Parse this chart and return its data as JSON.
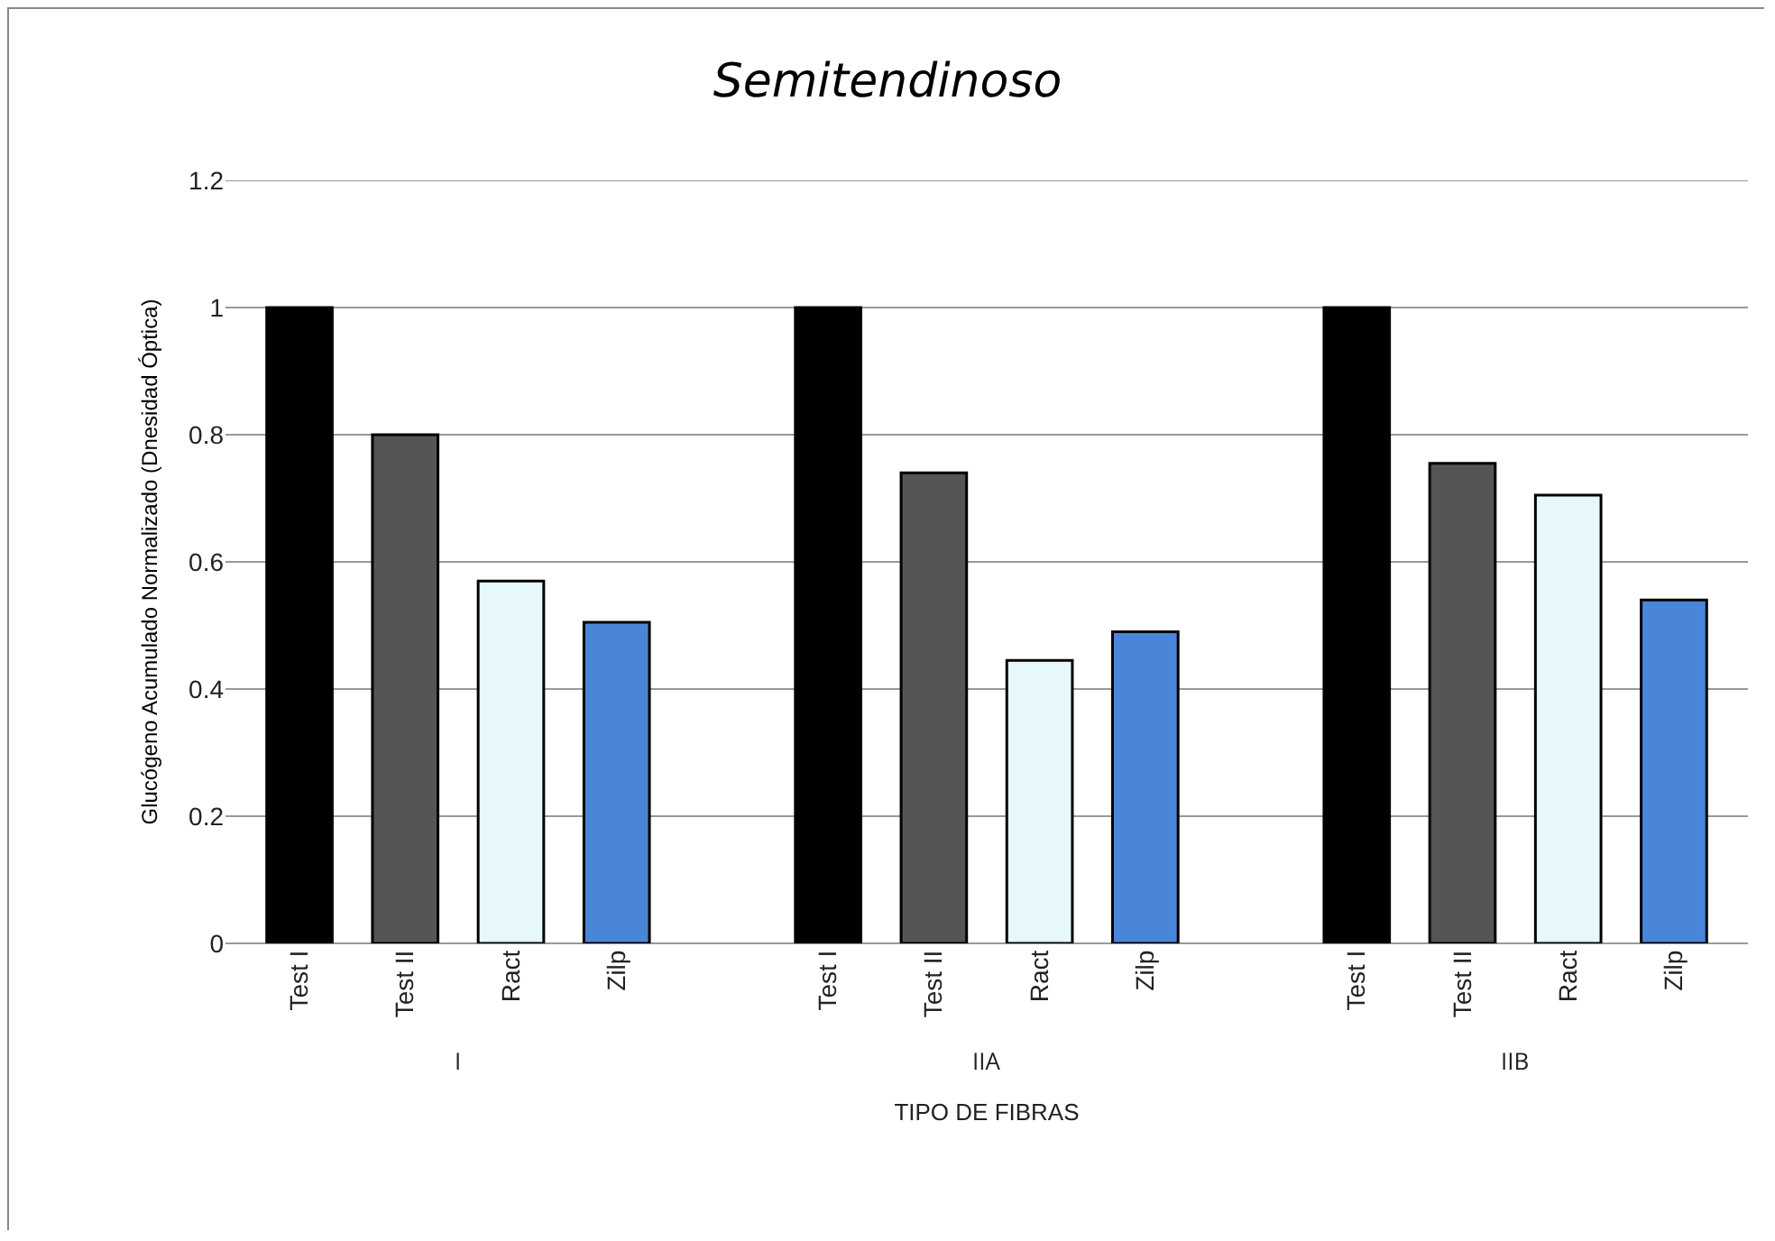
{
  "chart_data": {
    "type": "bar",
    "title": "Semitendinoso",
    "xlabel": "TIPO DE FIBRAS",
    "ylabel": "Glucógeno Acumulado Normalizado (Dnesidad Óptica)",
    "categories": [
      "Test I",
      "Test II",
      "Ract",
      "Zilp",
      null,
      "Test I",
      "Test II",
      "Ract",
      "Zilp",
      null,
      "Test I",
      "Test II",
      "Ract",
      "Zilp"
    ],
    "values": [
      1,
      0.8,
      0.57,
      0.505,
      null,
      1,
      0.74,
      0.445,
      0.49,
      null,
      1,
      0.755,
      0.705,
      0.54
    ],
    "colors": [
      "#000000",
      "#555555",
      "#e6f8fc",
      "#4a86d8",
      null,
      "#000000",
      "#555555",
      "#e6f8fc",
      "#4a86d8",
      null,
      "#000000",
      "#555555",
      "#e6f8fc",
      "#4a86d8"
    ],
    "annotations": [
      "I",
      "IIA",
      "IIB"
    ],
    "ylim": [
      0,
      1.2
    ],
    "yticks": [
      0,
      0.2,
      0.4,
      0.6,
      0.8,
      1,
      1.2
    ],
    "grid": "y"
  }
}
